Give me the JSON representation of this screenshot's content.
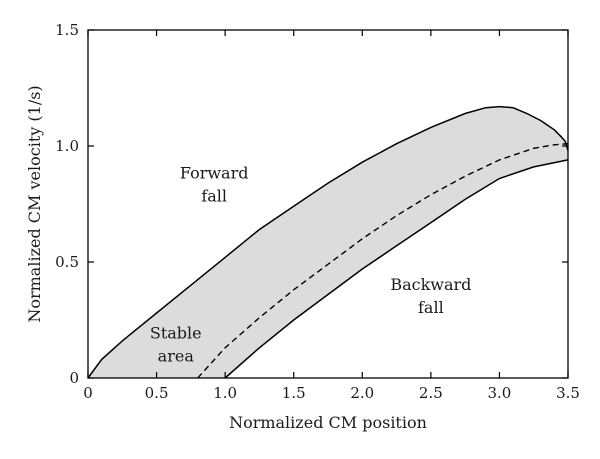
{
  "chart_data": {
    "type": "area",
    "xlabel": "Normalized CM position",
    "ylabel": "Normalized CM velocity (1/s)",
    "xlim": [
      0,
      3.5
    ],
    "ylim": [
      0,
      1.5
    ],
    "x_ticks": [
      {
        "value": 0,
        "label": "0"
      },
      {
        "value": 0.5,
        "label": "0.5"
      },
      {
        "value": 1.0,
        "label": "1.0"
      },
      {
        "value": 1.5,
        "label": "1.5"
      },
      {
        "value": 2.0,
        "label": "2.0"
      },
      {
        "value": 2.5,
        "label": "2.5"
      },
      {
        "value": 3.0,
        "label": "3.0"
      },
      {
        "value": 3.5,
        "label": "3.5"
      }
    ],
    "y_ticks": [
      {
        "value": 0,
        "label": "0"
      },
      {
        "value": 0.5,
        "label": "0.5"
      },
      {
        "value": 1.0,
        "label": "1.0"
      },
      {
        "value": 1.5,
        "label": "1.5"
      }
    ],
    "grid": false,
    "fill_color": "#dcdcdc",
    "series": [
      {
        "style": "solid",
        "x": [
          0,
          0.1,
          0.25,
          0.5,
          0.75,
          1.0,
          1.25,
          1.5,
          1.75,
          2.0,
          2.25,
          2.5,
          2.75,
          2.9,
          3.0,
          3.1,
          3.2,
          3.3,
          3.4,
          3.45,
          3.48,
          3.5
        ],
        "y": [
          0,
          0.08,
          0.16,
          0.28,
          0.4,
          0.52,
          0.64,
          0.74,
          0.84,
          0.93,
          1.01,
          1.08,
          1.14,
          1.165,
          1.17,
          1.165,
          1.14,
          1.11,
          1.07,
          1.04,
          1.02,
          0.98
        ]
      },
      {
        "style": "solid",
        "x": [
          1.0,
          1.25,
          1.5,
          1.75,
          2.0,
          2.25,
          2.5,
          2.75,
          3.0,
          3.25,
          3.5
        ],
        "y": [
          0,
          0.13,
          0.25,
          0.36,
          0.47,
          0.57,
          0.67,
          0.77,
          0.86,
          0.91,
          0.94
        ]
      },
      {
        "style": "dashed",
        "x": [
          0.8,
          1.0,
          1.25,
          1.5,
          1.75,
          2.0,
          2.25,
          2.5,
          2.75,
          3.0,
          3.25,
          3.4,
          3.5
        ],
        "y": [
          0,
          0.13,
          0.26,
          0.38,
          0.49,
          0.6,
          0.7,
          0.79,
          0.87,
          0.94,
          0.99,
          1.005,
          1.01
        ]
      }
    ],
    "annotations": [
      {
        "lines": [
          "Forward",
          "fall"
        ],
        "x": 0.92,
        "y": 0.86
      },
      {
        "lines": [
          "Backward",
          "fall"
        ],
        "x": 2.5,
        "y": 0.38
      },
      {
        "lines": [
          "Stable",
          "area"
        ],
        "x": 0.64,
        "y": 0.17
      }
    ]
  }
}
